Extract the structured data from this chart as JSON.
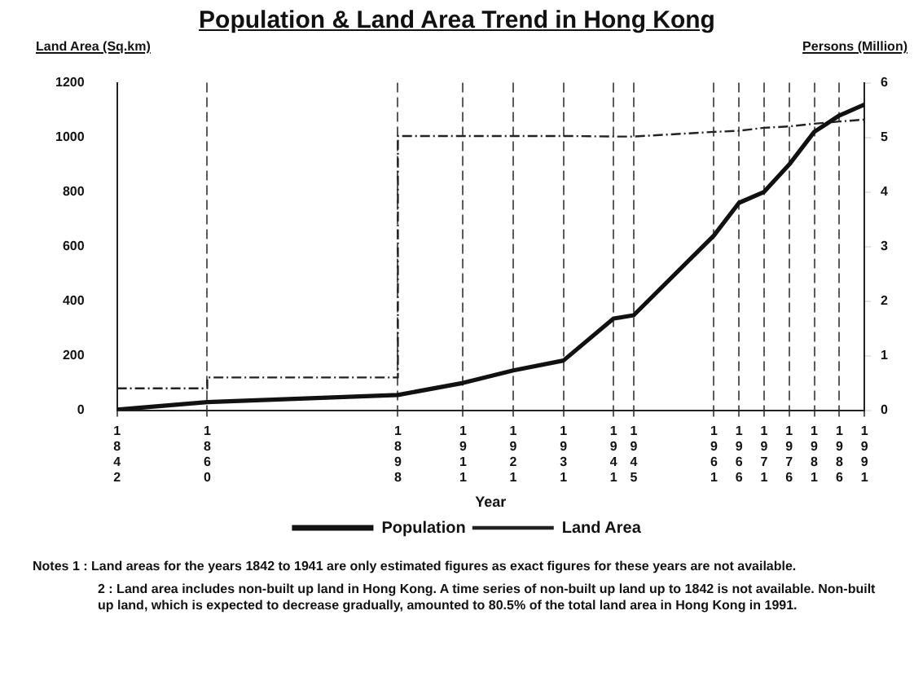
{
  "chart_data": {
    "type": "line",
    "title": "Population & Land Area Trend in Hong Kong",
    "xlabel": "Year",
    "ylabel": "Land Area (Sq.km)",
    "y2label": "Persons (Million)",
    "xlim": [
      1842,
      1991
    ],
    "xticks": [
      1842,
      1860,
      1898,
      1911,
      1921,
      1931,
      1941,
      1945,
      1961,
      1966,
      1971,
      1976,
      1981,
      1986,
      1991
    ],
    "ylim": [
      0,
      1200
    ],
    "yticks": [
      0,
      200,
      400,
      600,
      800,
      1000,
      1200
    ],
    "y2lim": [
      0,
      6
    ],
    "y2ticks": [
      0,
      1,
      2,
      3,
      4,
      5,
      6
    ],
    "grid": "x",
    "legend": "bottom",
    "marker": "none",
    "series": [
      {
        "name": "Population",
        "color": "#111111",
        "axis": "y2",
        "line_style": "solid",
        "x": [
          1842,
          1860,
          1898,
          1911,
          1921,
          1931,
          1941,
          1945,
          1961,
          1966,
          1971,
          1976,
          1981,
          1986,
          1991
        ],
        "values": [
          0.01,
          0.15,
          0.28,
          0.5,
          0.73,
          0.91,
          1.68,
          1.74,
          3.2,
          3.8,
          4.0,
          4.5,
          5.1,
          5.4,
          5.6
        ]
      },
      {
        "name": "Land Area",
        "color": "#222222",
        "axis": "y",
        "line_style": "dashed",
        "x": [
          1842,
          1860,
          1860,
          1898,
          1898,
          1911,
          1921,
          1931,
          1941,
          1945,
          1961,
          1966,
          1971,
          1976,
          1981,
          1986,
          1991
        ],
        "values": [
          80,
          80,
          120,
          120,
          1005,
          1005,
          1005,
          1005,
          1003,
          1003,
          1020,
          1024,
          1035,
          1040,
          1050,
          1058,
          1065
        ]
      }
    ],
    "annotations": [
      "Notes 1 : Land areas for the years 1842 to 1941 are only estimated figures as exact figures for these years are not available.",
      "2 : Land area includes non-built up land in Hong Kong. A time series of non-built up land up to 1842 is not available. Non-built up land, which is expected to decrease gradually, amounted to 80.5% of the total land area in Hong Kong in 1991."
    ]
  }
}
